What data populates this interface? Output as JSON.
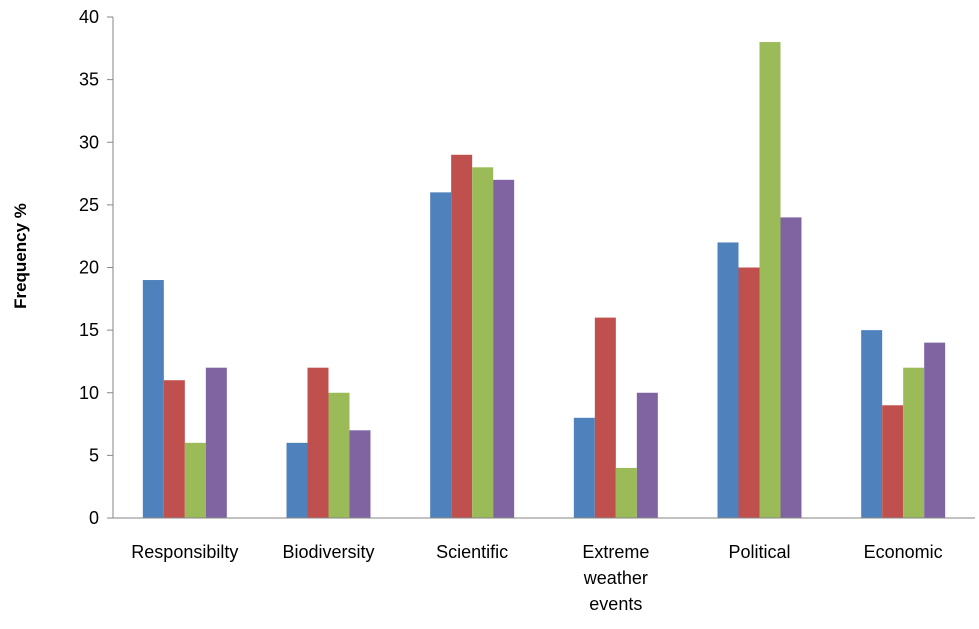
{
  "chart_data": {
    "type": "bar",
    "title": "",
    "xlabel": "",
    "ylabel": "Frequency %",
    "ylim": [
      0,
      40
    ],
    "yticks": [
      0,
      5,
      10,
      15,
      20,
      25,
      30,
      35,
      40
    ],
    "grid": false,
    "legend": "none",
    "categories": [
      [
        "Responsibilty"
      ],
      [
        "Biodiversity"
      ],
      [
        "Scientific"
      ],
      [
        "Extreme",
        "weather",
        "events"
      ],
      [
        "Political"
      ],
      [
        "Economic"
      ]
    ],
    "series": [
      {
        "color": "#4F81BD",
        "values": [
          19,
          6,
          26,
          8,
          22,
          15
        ]
      },
      {
        "color": "#C0504D",
        "values": [
          11,
          12,
          29,
          16,
          20,
          9
        ]
      },
      {
        "color": "#9BBB59",
        "values": [
          6,
          10,
          28,
          4,
          38,
          12
        ]
      },
      {
        "color": "#8064A2",
        "values": [
          12,
          7,
          27,
          10,
          24,
          14
        ]
      }
    ]
  }
}
